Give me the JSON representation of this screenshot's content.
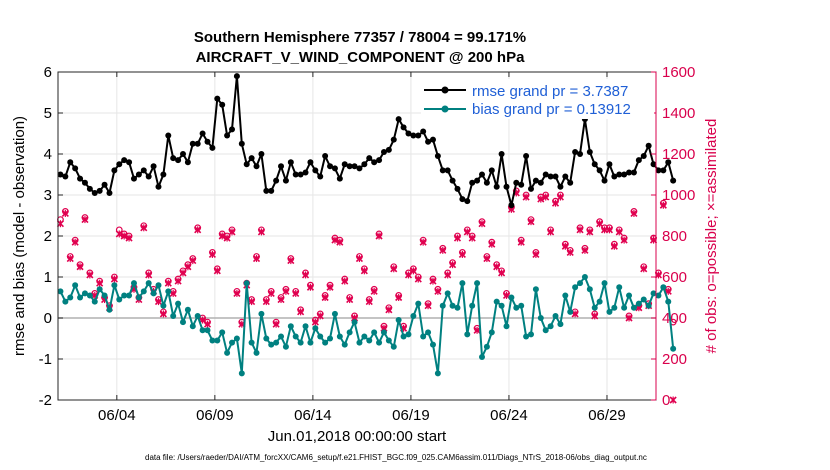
{
  "chart_data": {
    "type": "line",
    "title_line1": "Southern Hemisphere 77357 / 78004 = 99.171%",
    "title_line2": "AIRCRAFT_V_WIND_COMPONENT @ 200 hPa",
    "xlabel": "Jun.01,2018 00:00:00 start",
    "ylabel_left": "rmse and bias (model - observation)",
    "ylabel_right": "# of obs: o=possible; ×=assimilated",
    "footnote": "data file: /Users/raeder/DAI/ATM_forcXX/CAM6_setup/f.e21.FHIST_BGC.f09_025.CAM6assim.011/Diags_NTrS_2018-06/obs_diag_output.nc",
    "xlim_days": [
      0,
      30.5
    ],
    "x_ticks": [
      {
        "day": 3,
        "label": "06/04"
      },
      {
        "day": 8,
        "label": "06/09"
      },
      {
        "day": 13,
        "label": "06/14"
      },
      {
        "day": 18,
        "label": "06/19"
      },
      {
        "day": 23,
        "label": "06/24"
      },
      {
        "day": 28,
        "label": "06/29"
      }
    ],
    "ylim_left": [
      -2,
      6
    ],
    "y_ticks_left": [
      -2,
      -1,
      0,
      1,
      2,
      3,
      4,
      5,
      6
    ],
    "y_tick_labels_left": [
      "-2",
      "-1",
      "0",
      "1",
      "2",
      "3",
      "4",
      "5",
      "6"
    ],
    "ylim_right": [
      0,
      1600
    ],
    "y_ticks_right": [
      0,
      200,
      400,
      600,
      800,
      1000,
      1200,
      1400,
      1600
    ],
    "y_tick_labels_right": [
      "0",
      "200",
      "400",
      "600",
      "800",
      "1000",
      "1200",
      "1400",
      "1600"
    ],
    "grid": true,
    "legend_position": "top-right",
    "x_step_days": 0.25,
    "series": [
      {
        "name": "rmse grand pr = 3.7387",
        "axis": "left",
        "color": "#000000",
        "values": [
          3.5,
          3.45,
          3.8,
          3.65,
          3.4,
          3.3,
          3.15,
          3.05,
          3.1,
          3.25,
          3.05,
          3.6,
          3.75,
          3.85,
          3.8,
          3.4,
          3.5,
          3.6,
          3.45,
          3.7,
          3.2,
          3.5,
          4.45,
          3.9,
          3.85,
          4.0,
          3.8,
          4.25,
          4.25,
          4.5,
          4.3,
          4.15,
          5.35,
          5.2,
          4.45,
          4.6,
          5.9,
          4.25,
          3.75,
          3.9,
          3.7,
          4.0,
          3.1,
          3.1,
          3.35,
          3.7,
          3.35,
          3.8,
          3.5,
          3.5,
          3.55,
          3.8,
          3.6,
          3.45,
          3.95,
          3.7,
          3.65,
          3.4,
          3.75,
          3.7,
          3.7,
          3.65,
          3.75,
          3.9,
          3.8,
          3.85,
          4.05,
          4.1,
          4.35,
          4.85,
          4.65,
          4.5,
          4.45,
          4.45,
          4.55,
          4.3,
          4.35,
          3.95,
          3.6,
          3.6,
          3.35,
          3.15,
          2.9,
          2.85,
          3.3,
          3.35,
          3.5,
          3.3,
          3.6,
          3.2,
          4.0,
          3.2,
          2.75,
          3.3,
          3.25,
          3.95,
          3.15,
          3.35,
          3.3,
          3.5,
          3.45,
          3.45,
          3.2,
          3.45,
          3.3,
          4.05,
          4.0,
          4.85,
          4.05,
          3.75,
          3.6,
          3.35,
          3.75,
          3.45,
          3.5,
          3.5,
          3.55,
          3.55,
          3.85,
          3.95,
          4.2,
          3.75,
          3.6,
          3.6,
          3.8,
          3.35
        ]
      },
      {
        "name": "bias grand pr = 0.13912",
        "axis": "left",
        "color": "#008080",
        "values": [
          0.65,
          0.4,
          0.5,
          0.8,
          0.5,
          0.6,
          0.55,
          0.4,
          0.7,
          0.55,
          0.2,
          0.8,
          0.45,
          0.55,
          0.55,
          0.85,
          0.5,
          0.65,
          0.85,
          0.6,
          0.8,
          0.3,
          0.65,
          0.05,
          0.35,
          -0.1,
          0.2,
          -0.2,
          0.05,
          -0.3,
          -0.3,
          -0.55,
          -0.55,
          -0.35,
          -0.85,
          -0.6,
          -0.5,
          -1.35,
          0.85,
          -0.6,
          -0.85,
          0.1,
          -0.5,
          -0.65,
          -0.6,
          -0.45,
          -0.7,
          -0.2,
          -0.45,
          -0.6,
          -0.2,
          -0.6,
          -0.25,
          -0.45,
          -0.6,
          -0.5,
          0.1,
          -0.45,
          -0.65,
          -0.35,
          -0.1,
          -0.6,
          -0.45,
          -0.55,
          -0.35,
          -0.6,
          -0.35,
          -0.55,
          -0.7,
          -0.05,
          -0.45,
          -0.4,
          0.05,
          0.35,
          -0.45,
          -0.35,
          -0.65,
          -1.35,
          0.3,
          0.6,
          0.3,
          0.25,
          0.85,
          -0.4,
          0.3,
          0.85,
          -0.95,
          -0.7,
          -0.35,
          0.4,
          0.3,
          -0.2,
          0.5,
          0.25,
          0.3,
          -0.45,
          -0.4,
          0.7,
          0.0,
          -0.3,
          -0.2,
          0.05,
          -0.15,
          0.55,
          0.15,
          0.75,
          0.85,
          1.0,
          0.7,
          0.25,
          0.4,
          0.85,
          0.15,
          0.25,
          0.75,
          0.25,
          0.55,
          0.25,
          0.35,
          0.45,
          0.3,
          0.6,
          0.55,
          0.75,
          0.4,
          -0.75
        ]
      },
      {
        "name": "possible",
        "axis": "right",
        "color": "#e0004f",
        "marker": "circle",
        "values": [
          880,
          920,
          700,
          780,
          660,
          890,
          620,
          520,
          580,
          500,
          460,
          600,
          830,
          810,
          800,
          550,
          500,
          850,
          620,
          540,
          490,
          430,
          580,
          530,
          590,
          630,
          660,
          690,
          840,
          400,
          380,
          720,
          640,
          810,
          800,
          830,
          530,
          380,
          570,
          490,
          700,
          830,
          490,
          530,
          380,
          500,
          540,
          690,
          530,
          440,
          620,
          560,
          390,
          420,
          510,
          560,
          790,
          780,
          590,
          500,
          410,
          700,
          640,
          490,
          540,
          810,
          360,
          450,
          650,
          510,
          360,
          620,
          640,
          600,
          780,
          470,
          590,
          540,
          740,
          620,
          670,
          800,
          720,
          830,
          800,
          350,
          870,
          700,
          770,
          660,
          630,
          520,
          940,
          1020,
          780,
          1000,
          880,
          720,
          990,
          1000,
          830,
          970,
          1000,
          760,
          730,
          430,
          840,
          740,
          830,
          420,
          870,
          840,
          840,
          760,
          830,
          790,
          410,
          920,
          460,
          650,
          470,
          790,
          620,
          960,
          540,
          380
        ]
      },
      {
        "name": "assimilated",
        "axis": "right",
        "color": "#e0004f",
        "marker": "x",
        "values": [
          860,
          910,
          690,
          770,
          650,
          880,
          610,
          510,
          570,
          490,
          450,
          590,
          810,
          800,
          790,
          540,
          490,
          840,
          610,
          530,
          480,
          420,
          570,
          520,
          580,
          620,
          650,
          680,
          830,
          390,
          370,
          710,
          630,
          800,
          790,
          820,
          520,
          370,
          560,
          480,
          690,
          820,
          480,
          520,
          370,
          490,
          530,
          680,
          520,
          430,
          610,
          550,
          380,
          410,
          500,
          550,
          780,
          770,
          580,
          490,
          400,
          690,
          630,
          480,
          530,
          800,
          350,
          440,
          640,
          500,
          350,
          610,
          630,
          590,
          770,
          460,
          580,
          530,
          730,
          610,
          660,
          790,
          710,
          820,
          790,
          340,
          860,
          690,
          760,
          650,
          620,
          510,
          930,
          1010,
          770,
          990,
          870,
          710,
          980,
          990,
          820,
          960,
          990,
          750,
          720,
          420,
          830,
          730,
          820,
          410,
          860,
          830,
          830,
          750,
          820,
          780,
          400,
          910,
          450,
          640,
          460,
          780,
          610,
          950,
          530,
          0
        ]
      }
    ]
  }
}
